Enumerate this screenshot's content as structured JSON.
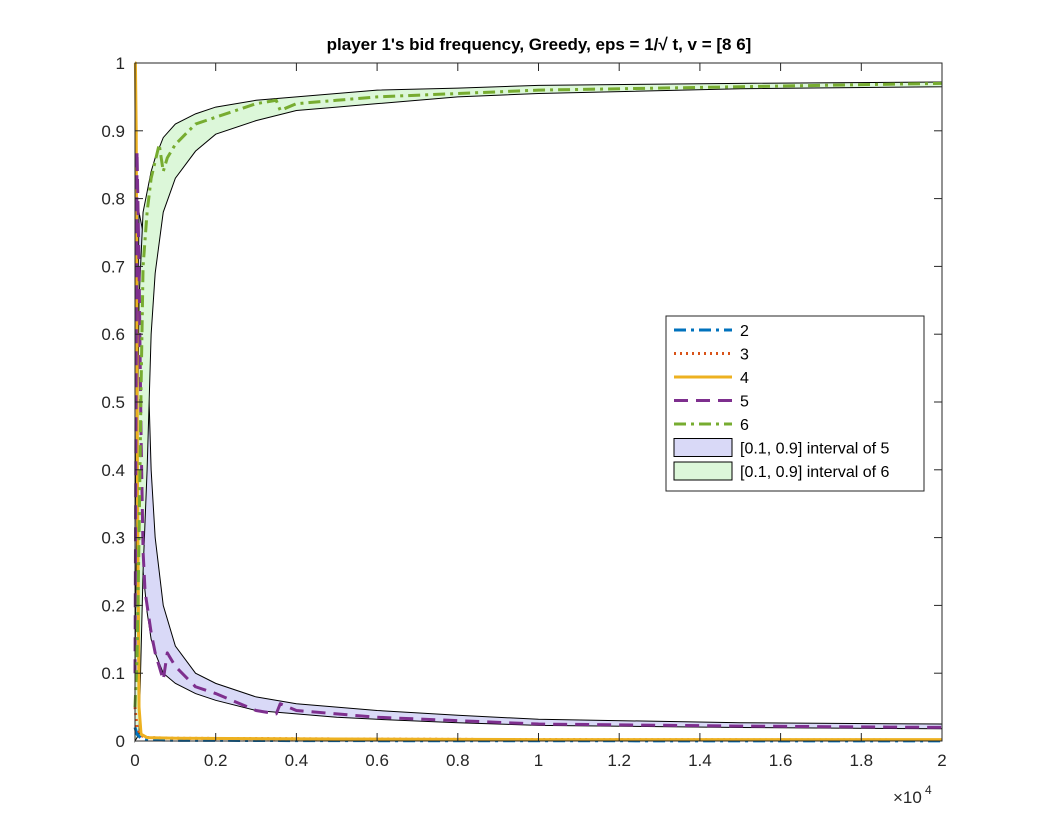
{
  "chart_data": {
    "type": "line",
    "title": "player 1's bid frequency, Greedy, eps = 1/√ t, v = [8  6]",
    "xlabel": "",
    "ylabel": "",
    "xlim": [
      0,
      20000
    ],
    "ylim": [
      0,
      1
    ],
    "x_exponent_label": "×10",
    "x_exponent_power": "4",
    "x_ticks": [
      0,
      0.2,
      0.4,
      0.6,
      0.8,
      1,
      1.2,
      1.4,
      1.6,
      1.8,
      2
    ],
    "x_tick_labels": [
      "0",
      "0.2",
      "0.4",
      "0.6",
      "0.8",
      "1",
      "1.2",
      "1.4",
      "1.6",
      "1.8",
      "2"
    ],
    "y_ticks": [
      0,
      0.1,
      0.2,
      0.3,
      0.4,
      0.5,
      0.6,
      0.7,
      0.8,
      0.9,
      1
    ],
    "y_tick_labels": [
      "0",
      "0.1",
      "0.2",
      "0.3",
      "0.4",
      "0.5",
      "0.6",
      "0.7",
      "0.8",
      "0.9",
      "1"
    ],
    "grid": false,
    "legend_position": "right",
    "series": [
      {
        "name": "2",
        "color": "#0072BD",
        "dash": "dash-dot",
        "x": [
          0,
          50,
          150,
          300,
          1000,
          5000,
          10000,
          20000
        ],
        "y": [
          0.02,
          0.01,
          0.004,
          0.002,
          0.001,
          0.0005,
          0.0003,
          0.0002
        ]
      },
      {
        "name": "3",
        "color": "#D95319",
        "dash": "dotted",
        "x": [
          0,
          50,
          150,
          300,
          1000,
          5000,
          10000,
          20000
        ],
        "y": [
          0.05,
          0.02,
          0.008,
          0.005,
          0.004,
          0.003,
          0.002,
          0.0015
        ]
      },
      {
        "name": "4",
        "color": "#EDB120",
        "dash": "solid",
        "x": [
          0,
          10,
          30,
          60,
          100,
          150,
          300,
          1000,
          5000,
          10000,
          20000
        ],
        "y": [
          1,
          1,
          0.9,
          0.4,
          0.05,
          0.01,
          0.005,
          0.004,
          0.003,
          0.002,
          0.002
        ]
      },
      {
        "name": "5",
        "color": "#7E2F8E",
        "dash": "dashed",
        "x": [
          0,
          50,
          100,
          150,
          200,
          250,
          300,
          400,
          500,
          600,
          700,
          800,
          1000,
          1500,
          2000,
          3000,
          3500,
          3600,
          4000,
          5000,
          6000,
          8000,
          10000,
          15000,
          20000
        ],
        "y": [
          0.1,
          0.87,
          0.7,
          0.45,
          0.28,
          0.22,
          0.2,
          0.16,
          0.13,
          0.11,
          0.09,
          0.13,
          0.11,
          0.08,
          0.07,
          0.045,
          0.04,
          0.055,
          0.045,
          0.04,
          0.035,
          0.03,
          0.025,
          0.022,
          0.02
        ]
      },
      {
        "name": "6",
        "color": "#77AC30",
        "dash": "dash-dot",
        "x": [
          0,
          50,
          100,
          150,
          200,
          300,
          400,
          600,
          700,
          800,
          1000,
          1500,
          2000,
          3000,
          3500,
          3600,
          4000,
          5000,
          6000,
          8000,
          10000,
          15000,
          20000
        ],
        "y": [
          0.05,
          0.12,
          0.3,
          0.52,
          0.7,
          0.78,
          0.83,
          0.88,
          0.84,
          0.86,
          0.88,
          0.91,
          0.92,
          0.94,
          0.945,
          0.93,
          0.94,
          0.945,
          0.95,
          0.955,
          0.96,
          0.965,
          0.97
        ]
      }
    ],
    "bands": [
      {
        "name": "[0.1, 0.9] interval of 5",
        "fill": "#d9d9f7",
        "edge": "#000000",
        "x": [
          0,
          100,
          200,
          300,
          400,
          500,
          700,
          1000,
          1500,
          2000,
          3000,
          4000,
          5000,
          6000,
          8000,
          10000,
          15000,
          20000
        ],
        "lower": [
          0.05,
          0.5,
          0.25,
          0.19,
          0.15,
          0.13,
          0.1,
          0.085,
          0.07,
          0.06,
          0.045,
          0.04,
          0.035,
          0.032,
          0.027,
          0.023,
          0.02,
          0.018
        ],
        "upper": [
          0.3,
          0.78,
          0.75,
          0.6,
          0.4,
          0.3,
          0.2,
          0.14,
          0.1,
          0.085,
          0.065,
          0.055,
          0.05,
          0.045,
          0.038,
          0.032,
          0.027,
          0.025
        ]
      },
      {
        "name": "[0.1, 0.9] interval of 6",
        "fill": "#dcf7d9",
        "edge": "#000000",
        "x": [
          0,
          100,
          200,
          300,
          400,
          500,
          700,
          1000,
          1500,
          2000,
          3000,
          4000,
          5000,
          6000,
          8000,
          10000,
          15000,
          20000
        ],
        "lower": [
          0.0,
          0.01,
          0.25,
          0.4,
          0.6,
          0.69,
          0.78,
          0.83,
          0.87,
          0.895,
          0.915,
          0.93,
          0.935,
          0.94,
          0.95,
          0.955,
          0.962,
          0.965
        ],
        "upper": [
          0.1,
          0.65,
          0.78,
          0.81,
          0.84,
          0.86,
          0.89,
          0.91,
          0.925,
          0.935,
          0.945,
          0.95,
          0.955,
          0.96,
          0.963,
          0.967,
          0.97,
          0.972
        ]
      }
    ]
  }
}
